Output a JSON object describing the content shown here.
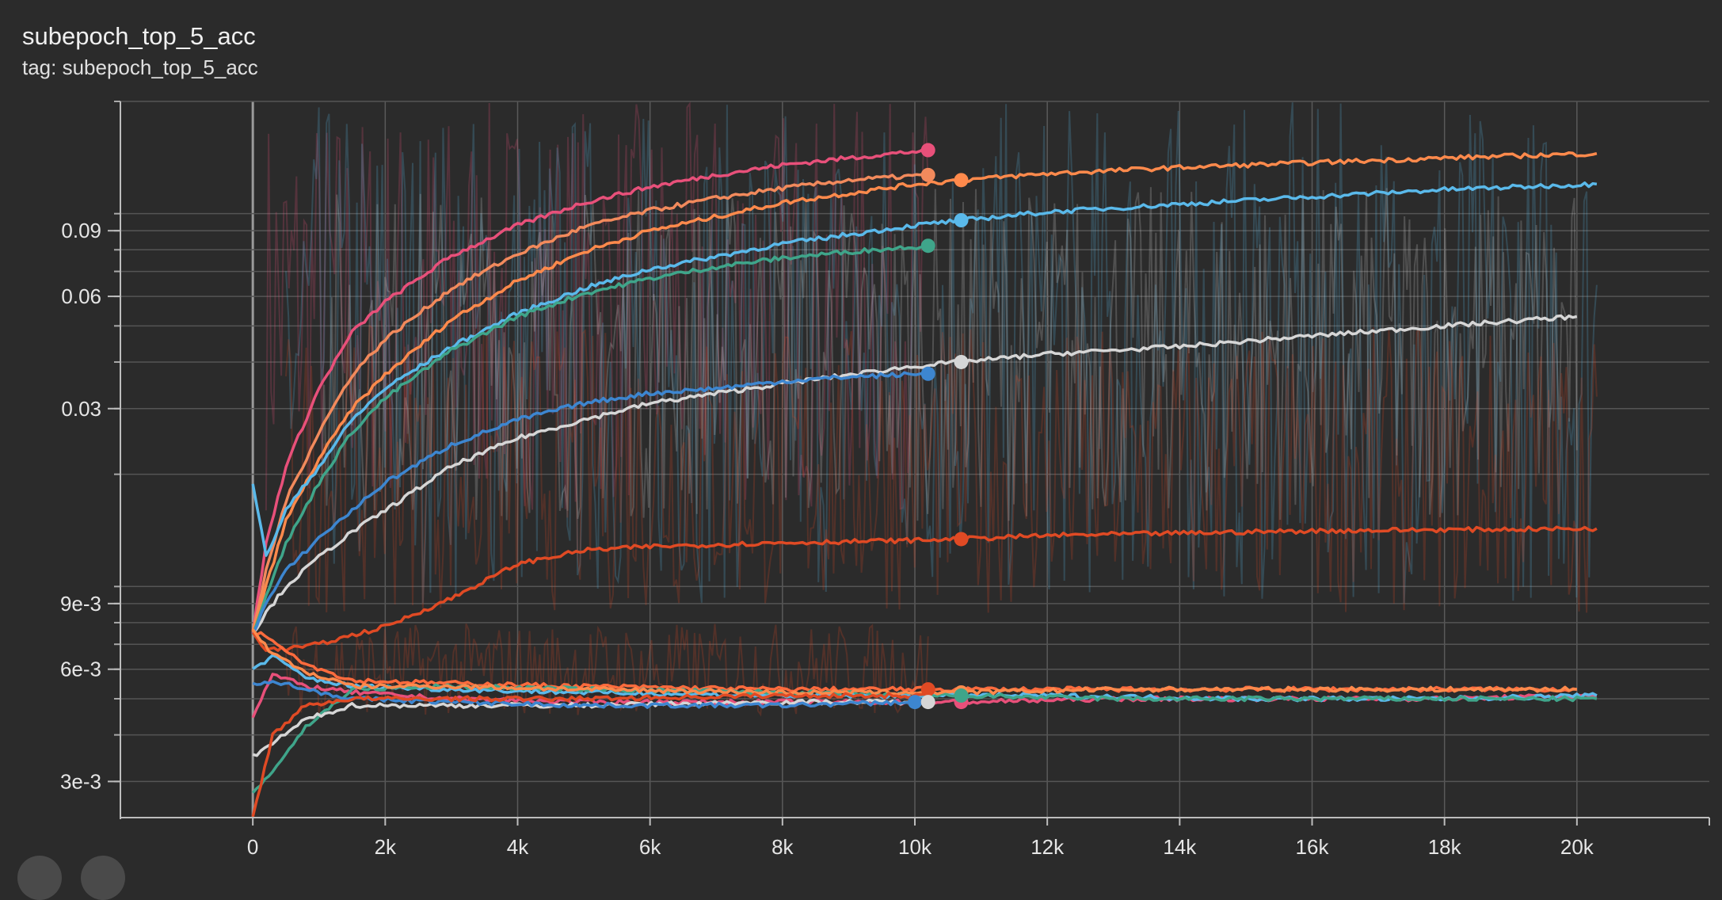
{
  "card": {
    "title": "subepoch_top_5_acc",
    "tag_line": "tag: subepoch_top_5_acc"
  },
  "chart_data": {
    "type": "line",
    "title": "subepoch_top_5_acc",
    "subtitle": "tag: subepoch_top_5_acc",
    "xlabel": "",
    "ylabel": "",
    "y_scale": "log",
    "xlim": [
      -2000,
      22000
    ],
    "ylim": [
      0.0024,
      0.2
    ],
    "x_ticks": [
      0,
      2000,
      4000,
      6000,
      8000,
      10000,
      12000,
      14000,
      16000,
      18000,
      20000
    ],
    "x_tick_labels": [
      "0",
      "2k",
      "4k",
      "6k",
      "8k",
      "10k",
      "12k",
      "14k",
      "16k",
      "18k",
      "20k"
    ],
    "y_ticks_labeled": [
      0.003,
      0.006,
      0.009,
      0.03,
      0.06,
      0.09
    ],
    "y_tick_labels": [
      "3e-3",
      "6e-3",
      "9e-3",
      "0.03",
      "0.06",
      "0.09"
    ],
    "grid": true,
    "legend": "none",
    "series": [
      {
        "color": "#e8507a",
        "x": [
          0,
          200,
          500,
          1000,
          1500,
          2000,
          3000,
          4000,
          5000,
          6000,
          7000,
          8000,
          9000,
          10200
        ],
        "y": [
          0.0075,
          0.013,
          0.021,
          0.034,
          0.048,
          0.058,
          0.077,
          0.093,
          0.107,
          0.118,
          0.127,
          0.135,
          0.141,
          0.148
        ]
      },
      {
        "color": "#f28a5c",
        "x": [
          0,
          200,
          500,
          1000,
          1500,
          2000,
          3000,
          4000,
          5000,
          6000,
          7000,
          8000,
          9000,
          10200
        ],
        "y": [
          0.0075,
          0.011,
          0.017,
          0.026,
          0.037,
          0.046,
          0.063,
          0.078,
          0.092,
          0.102,
          0.11,
          0.117,
          0.123,
          0.127
        ]
      },
      {
        "color": "#ff8a4c",
        "x": [
          0,
          200,
          500,
          1000,
          1500,
          2000,
          3000,
          4000,
          5000,
          6000,
          8000,
          10000,
          10700,
          12000,
          14000,
          16000,
          18000,
          20300
        ],
        "y": [
          0.0075,
          0.01,
          0.015,
          0.022,
          0.03,
          0.037,
          0.052,
          0.066,
          0.079,
          0.09,
          0.107,
          0.12,
          0.123,
          0.128,
          0.133,
          0.137,
          0.141,
          0.145
        ]
      },
      {
        "color": "#5ab9ea",
        "x": [
          0,
          200,
          500,
          1000,
          1500,
          2000,
          3000,
          4000,
          5000,
          6000,
          8000,
          10000,
          10700,
          12000,
          14000,
          16000,
          18000,
          20300
        ],
        "y": [
          0.019,
          0.012,
          0.016,
          0.021,
          0.028,
          0.034,
          0.044,
          0.054,
          0.063,
          0.071,
          0.083,
          0.093,
          0.096,
          0.101,
          0.106,
          0.111,
          0.116,
          0.12
        ]
      },
      {
        "color": "#3fa58a",
        "x": [
          0,
          200,
          500,
          1000,
          1500,
          2000,
          3000,
          4000,
          5000,
          6000,
          7000,
          8000,
          9000,
          10200
        ],
        "y": [
          0.0075,
          0.0095,
          0.013,
          0.019,
          0.026,
          0.032,
          0.043,
          0.053,
          0.061,
          0.067,
          0.072,
          0.076,
          0.079,
          0.082
        ]
      },
      {
        "color": "#d6d6d6",
        "x": [
          0,
          200,
          500,
          1000,
          1500,
          2000,
          3000,
          4000,
          5000,
          6000,
          8000,
          10000,
          10700,
          12000,
          14000,
          16000,
          18000,
          20000
        ],
        "y": [
          0.0075,
          0.0085,
          0.01,
          0.012,
          0.014,
          0.016,
          0.021,
          0.025,
          0.028,
          0.031,
          0.035,
          0.039,
          0.04,
          0.042,
          0.044,
          0.047,
          0.05,
          0.053
        ]
      },
      {
        "color": "#3d86d0",
        "x": [
          0,
          200,
          500,
          1000,
          1500,
          2000,
          3000,
          4000,
          5000,
          6000,
          7000,
          8000,
          9000,
          10200
        ],
        "y": [
          0.0075,
          0.009,
          0.011,
          0.0135,
          0.016,
          0.019,
          0.024,
          0.028,
          0.031,
          0.033,
          0.034,
          0.0355,
          0.0365,
          0.0372
        ]
      },
      {
        "color": "#e04a24",
        "x": [
          0,
          200,
          500,
          1000,
          1500,
          2000,
          3000,
          4000,
          5000,
          6000,
          8000,
          10000,
          10700,
          12000,
          14000,
          16000,
          18000,
          20300
        ],
        "y": [
          0.0075,
          0.0068,
          0.0068,
          0.007,
          0.0074,
          0.0078,
          0.0093,
          0.0115,
          0.0125,
          0.0128,
          0.0131,
          0.0133,
          0.0134,
          0.0137,
          0.0139,
          0.0141,
          0.0142,
          0.0143
        ]
      },
      {
        "color": "#ff6b3d",
        "x": [
          0,
          300,
          800,
          1500,
          3000,
          5000,
          8000,
          10200,
          12000,
          15000,
          18000,
          20000
        ],
        "y": [
          0.0076,
          0.0072,
          0.0062,
          0.0056,
          0.0055,
          0.0054,
          0.0053,
          0.0053,
          0.0053,
          0.0053,
          0.0053,
          0.0053
        ]
      },
      {
        "color": "#e8507a",
        "x": [
          0,
          300,
          800,
          1500,
          3000,
          5000,
          8000,
          10700,
          13000,
          16000,
          18000,
          20300
        ],
        "y": [
          0.0045,
          0.0058,
          0.0054,
          0.0052,
          0.005,
          0.0049,
          0.0049,
          0.0049,
          0.005,
          0.005,
          0.005,
          0.0051
        ]
      },
      {
        "color": "#5ab9ea",
        "x": [
          0,
          300,
          800,
          1500,
          3000,
          5000,
          8000,
          10000,
          12000,
          15000,
          18000,
          20300
        ],
        "y": [
          0.006,
          0.0065,
          0.0057,
          0.0054,
          0.0053,
          0.0052,
          0.0051,
          0.0051,
          0.0051,
          0.005,
          0.005,
          0.0051
        ]
      },
      {
        "color": "#3fa58a",
        "x": [
          0,
          300,
          800,
          1500,
          3000,
          5000,
          8000,
          10700,
          13000,
          16000,
          18000,
          20300
        ],
        "y": [
          0.0028,
          0.0032,
          0.0042,
          0.0053,
          0.0054,
          0.0053,
          0.0052,
          0.0051,
          0.005,
          0.005,
          0.005,
          0.005
        ]
      },
      {
        "color": "#d6d6d6",
        "x": [
          0,
          300,
          800,
          1500,
          3000,
          5000,
          8000,
          10200
        ],
        "y": [
          0.0035,
          0.0038,
          0.0044,
          0.0048,
          0.0048,
          0.0048,
          0.0049,
          0.0049
        ]
      },
      {
        "color": "#3d86d0",
        "x": [
          0,
          300,
          800,
          1500,
          3000,
          5000,
          8000,
          10000
        ],
        "y": [
          0.0055,
          0.0056,
          0.0053,
          0.005,
          0.0049,
          0.0048,
          0.0048,
          0.0049
        ]
      },
      {
        "color": "#ff8a4c",
        "x": [
          0,
          300,
          800,
          1500,
          3000,
          5000,
          8000,
          10700,
          13000,
          16000,
          20000
        ],
        "y": [
          0.0076,
          0.0066,
          0.0059,
          0.0054,
          0.0054,
          0.0053,
          0.0052,
          0.0052,
          0.0053,
          0.0053,
          0.0053
        ]
      },
      {
        "color": "#e04a24",
        "x": [
          0,
          300,
          800,
          1500,
          3000,
          5000,
          8000,
          10200
        ],
        "y": [
          0.0024,
          0.004,
          0.0048,
          0.005,
          0.005,
          0.005,
          0.0051,
          0.0051
        ]
      }
    ],
    "end_markers": [
      {
        "color": "#e8507a",
        "x": 10200,
        "y": 0.148
      },
      {
        "color": "#f28a5c",
        "x": 10200,
        "y": 0.127
      },
      {
        "color": "#ff8a4c",
        "x": 10700,
        "y": 0.123
      },
      {
        "color": "#5ab9ea",
        "x": 10700,
        "y": 0.096
      },
      {
        "color": "#3fa58a",
        "x": 10200,
        "y": 0.082
      },
      {
        "color": "#d6d6d6",
        "x": 10700,
        "y": 0.04
      },
      {
        "color": "#3d86d0",
        "x": 10200,
        "y": 0.0372
      },
      {
        "color": "#e04a24",
        "x": 10700,
        "y": 0.0134
      },
      {
        "color": "#e04a24",
        "x": 10200,
        "y": 0.0053
      },
      {
        "color": "#ff8a4c",
        "x": 10700,
        "y": 0.0052
      },
      {
        "color": "#3d86d0",
        "x": 10000,
        "y": 0.0049
      },
      {
        "color": "#d6d6d6",
        "x": 10200,
        "y": 0.0049
      },
      {
        "color": "#e8507a",
        "x": 10700,
        "y": 0.0049
      },
      {
        "color": "#3fa58a",
        "x": 10700,
        "y": 0.0051
      }
    ],
    "noise_bands": [
      {
        "color": "#e8507a",
        "x0": 200,
        "x1": 10200,
        "ylo": 0.016,
        "yhi": 0.2
      },
      {
        "color": "#5ab9ea",
        "x0": 500,
        "x1": 20300,
        "ylo": 0.009,
        "yhi": 0.2
      },
      {
        "color": "#d6d6d6",
        "x0": 1000,
        "x1": 20000,
        "ylo": 0.015,
        "yhi": 0.12
      },
      {
        "color": "#e04a24",
        "x0": 500,
        "x1": 20300,
        "ylo": 0.0085,
        "yhi": 0.05
      },
      {
        "color": "#e04a24",
        "x0": 500,
        "x1": 10200,
        "ylo": 0.0045,
        "yhi": 0.008
      }
    ]
  }
}
